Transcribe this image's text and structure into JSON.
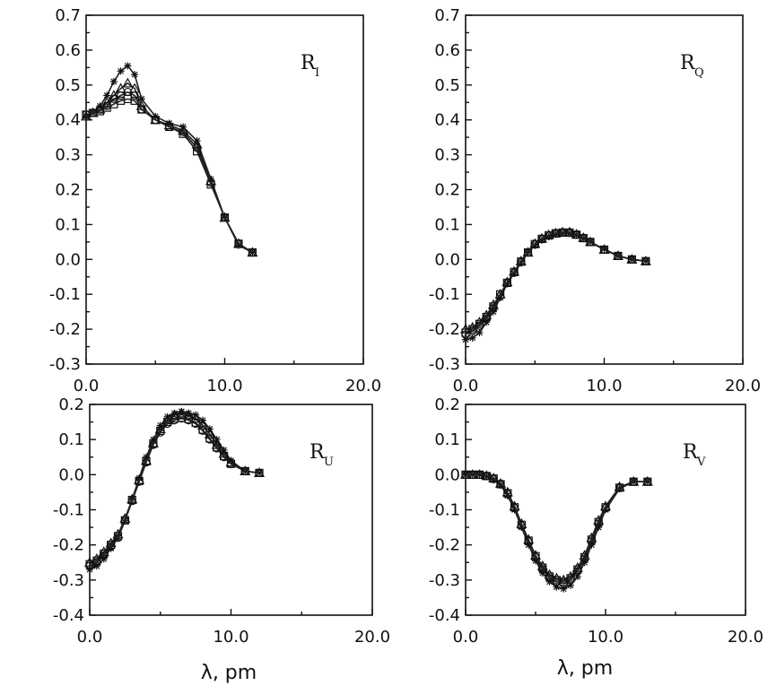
{
  "figure": {
    "xlabel_left": "λ, pm",
    "xlabel_right": "λ, pm"
  },
  "chart_data": [
    {
      "id": "RI",
      "type": "line",
      "title": "R",
      "title_sub": "I",
      "label_position": "top-right",
      "xlim": [
        0,
        20
      ],
      "ylim": [
        -0.3,
        0.7
      ],
      "xticks": [
        0,
        10,
        20
      ],
      "xtick_labels": [
        "0.0",
        "10.0",
        "20.0"
      ],
      "yticks": [
        -0.3,
        -0.2,
        -0.1,
        0.0,
        0.1,
        0.2,
        0.3,
        0.4,
        0.5,
        0.6,
        0.7
      ],
      "ytick_labels": [
        "-0.3",
        "-0.2",
        "-0.1",
        "0.0",
        "0.1",
        "0.2",
        "0.3",
        "0.4",
        "0.5",
        "0.6",
        "0.7"
      ],
      "x": [
        0,
        0.5,
        1,
        1.5,
        2,
        2.5,
        3,
        3.5,
        4,
        5,
        6,
        7,
        8,
        9,
        10,
        11,
        12
      ],
      "series": [
        {
          "name": "star",
          "marker": "star",
          "values": [
            0.41,
            0.42,
            0.44,
            0.47,
            0.51,
            0.54,
            0.555,
            0.53,
            0.46,
            0.41,
            0.39,
            0.38,
            0.34,
            0.23,
            0.12,
            0.04,
            0.02
          ]
        },
        {
          "name": "triangle",
          "marker": "triangle",
          "values": [
            0.41,
            0.42,
            0.43,
            0.45,
            0.47,
            0.49,
            0.505,
            0.49,
            0.44,
            0.4,
            0.385,
            0.37,
            0.33,
            0.225,
            0.12,
            0.045,
            0.02
          ]
        },
        {
          "name": "circle",
          "marker": "circle",
          "values": [
            0.415,
            0.42,
            0.43,
            0.44,
            0.46,
            0.47,
            0.48,
            0.47,
            0.43,
            0.4,
            0.38,
            0.365,
            0.32,
            0.22,
            0.12,
            0.045,
            0.02
          ]
        },
        {
          "name": "square",
          "marker": "square",
          "values": [
            0.415,
            0.42,
            0.425,
            0.435,
            0.445,
            0.455,
            0.46,
            0.455,
            0.43,
            0.4,
            0.38,
            0.36,
            0.31,
            0.215,
            0.12,
            0.045,
            0.02
          ]
        }
      ]
    },
    {
      "id": "RQ",
      "type": "line",
      "title": "R",
      "title_sub": "Q",
      "label_position": "top-right",
      "xlim": [
        0,
        20
      ],
      "ylim": [
        -0.3,
        0.7
      ],
      "xticks": [
        0,
        10,
        20
      ],
      "xtick_labels": [
        "0.0",
        "10.0",
        "20.0"
      ],
      "yticks": [
        -0.3,
        -0.2,
        -0.1,
        0.0,
        0.1,
        0.2,
        0.3,
        0.4,
        0.5,
        0.6,
        0.7
      ],
      "ytick_labels": [
        "-0.3",
        "-0.2",
        "-0.1",
        "0.0",
        "0.1",
        "0.2",
        "0.3",
        "0.4",
        "0.5",
        "0.6",
        "0.7"
      ],
      "x": [
        0,
        0.5,
        1,
        1.5,
        2,
        2.5,
        3,
        3.5,
        4,
        4.5,
        5,
        5.5,
        6,
        6.5,
        7,
        7.5,
        8,
        8.5,
        9,
        10,
        11,
        12,
        13
      ],
      "series": [
        {
          "name": "star",
          "marker": "star",
          "values": [
            -0.23,
            -0.225,
            -0.21,
            -0.18,
            -0.15,
            -0.11,
            -0.07,
            -0.04,
            -0.01,
            0.02,
            0.04,
            0.055,
            0.065,
            0.072,
            0.075,
            0.075,
            0.07,
            0.06,
            0.05,
            0.03,
            0.01,
            0.0,
            -0.005
          ]
        },
        {
          "name": "triangle",
          "marker": "triangle",
          "values": [
            -0.2,
            -0.195,
            -0.18,
            -0.16,
            -0.13,
            -0.1,
            -0.065,
            -0.035,
            -0.005,
            0.02,
            0.045,
            0.06,
            0.07,
            0.075,
            0.078,
            0.078,
            0.072,
            0.062,
            0.05,
            0.028,
            0.01,
            0.0,
            -0.005
          ]
        },
        {
          "name": "circle",
          "marker": "circle",
          "values": [
            -0.215,
            -0.205,
            -0.19,
            -0.17,
            -0.14,
            -0.105,
            -0.068,
            -0.038,
            -0.008,
            0.02,
            0.043,
            0.058,
            0.068,
            0.074,
            0.077,
            0.076,
            0.071,
            0.061,
            0.05,
            0.028,
            0.01,
            0.0,
            -0.005
          ]
        },
        {
          "name": "square",
          "marker": "square",
          "values": [
            -0.21,
            -0.2,
            -0.185,
            -0.165,
            -0.135,
            -0.1,
            -0.067,
            -0.036,
            -0.006,
            0.02,
            0.044,
            0.059,
            0.069,
            0.075,
            0.077,
            0.077,
            0.071,
            0.061,
            0.05,
            0.028,
            0.01,
            0.0,
            -0.005
          ]
        }
      ]
    },
    {
      "id": "RU",
      "type": "line",
      "title": "R",
      "title_sub": "U",
      "label_position": "top-right",
      "xlim": [
        0,
        20
      ],
      "ylim": [
        -0.4,
        0.2
      ],
      "xticks": [
        0,
        10,
        20
      ],
      "xtick_labels": [
        "0.0",
        "10.0",
        "20.0"
      ],
      "yticks": [
        -0.4,
        -0.3,
        -0.2,
        -0.1,
        0.0,
        0.1,
        0.2
      ],
      "ytick_labels": [
        "-0.4",
        "-0.3",
        "-0.2",
        "-0.1",
        "0.0",
        "0.1",
        "0.2"
      ],
      "x": [
        0,
        0.5,
        1,
        1.5,
        2,
        2.5,
        3,
        3.5,
        4,
        4.5,
        5,
        5.5,
        6,
        6.5,
        7,
        7.5,
        8,
        8.5,
        9,
        9.5,
        10,
        11,
        12
      ],
      "series": [
        {
          "name": "star",
          "marker": "star",
          "values": [
            -0.27,
            -0.26,
            -0.24,
            -0.21,
            -0.18,
            -0.13,
            -0.07,
            -0.01,
            0.05,
            0.1,
            0.14,
            0.165,
            0.175,
            0.18,
            0.175,
            0.17,
            0.155,
            0.13,
            0.1,
            0.07,
            0.04,
            0.01,
            0.005
          ]
        },
        {
          "name": "triangle",
          "marker": "triangle",
          "values": [
            -0.25,
            -0.24,
            -0.22,
            -0.195,
            -0.17,
            -0.125,
            -0.07,
            -0.015,
            0.04,
            0.09,
            0.13,
            0.155,
            0.17,
            0.175,
            0.17,
            0.16,
            0.14,
            0.115,
            0.085,
            0.06,
            0.035,
            0.01,
            0.005
          ]
        },
        {
          "name": "circle",
          "marker": "circle",
          "values": [
            -0.26,
            -0.25,
            -0.23,
            -0.205,
            -0.18,
            -0.13,
            -0.075,
            -0.02,
            0.035,
            0.085,
            0.12,
            0.145,
            0.155,
            0.16,
            0.155,
            0.145,
            0.125,
            0.1,
            0.075,
            0.05,
            0.03,
            0.01,
            0.005
          ]
        },
        {
          "name": "square",
          "marker": "square",
          "values": [
            -0.255,
            -0.245,
            -0.225,
            -0.2,
            -0.175,
            -0.13,
            -0.072,
            -0.018,
            0.038,
            0.088,
            0.125,
            0.15,
            0.16,
            0.162,
            0.158,
            0.148,
            0.128,
            0.103,
            0.078,
            0.053,
            0.031,
            0.01,
            0.005
          ]
        }
      ]
    },
    {
      "id": "RV",
      "type": "line",
      "title": "R",
      "title_sub": "V",
      "label_position": "top-right",
      "xlim": [
        0,
        20
      ],
      "ylim": [
        -0.4,
        0.2
      ],
      "xticks": [
        0,
        10,
        20
      ],
      "xtick_labels": [
        "0.0",
        "10.0",
        "20.0"
      ],
      "yticks": [
        -0.4,
        -0.3,
        -0.2,
        -0.1,
        0.0,
        0.1,
        0.2
      ],
      "ytick_labels": [
        "-0.4",
        "-0.3",
        "-0.2",
        "-0.1",
        "0.0",
        "0.1",
        "0.2"
      ],
      "x": [
        0,
        0.5,
        1,
        1.5,
        2,
        2.5,
        3,
        3.5,
        4,
        4.5,
        5,
        5.5,
        6,
        6.5,
        7,
        7.5,
        8,
        8.5,
        9,
        9.5,
        10,
        11,
        12,
        13
      ],
      "series": [
        {
          "name": "star",
          "marker": "star",
          "values": [
            0.0,
            0.0,
            0.0,
            -0.005,
            -0.015,
            -0.03,
            -0.06,
            -0.1,
            -0.15,
            -0.2,
            -0.245,
            -0.28,
            -0.305,
            -0.32,
            -0.325,
            -0.315,
            -0.29,
            -0.25,
            -0.2,
            -0.15,
            -0.1,
            -0.04,
            -0.02,
            -0.02
          ]
        },
        {
          "name": "triangle",
          "marker": "triangle",
          "values": [
            0.0,
            0.0,
            0.0,
            -0.003,
            -0.01,
            -0.025,
            -0.05,
            -0.09,
            -0.14,
            -0.185,
            -0.23,
            -0.26,
            -0.285,
            -0.295,
            -0.3,
            -0.29,
            -0.265,
            -0.23,
            -0.18,
            -0.13,
            -0.09,
            -0.035,
            -0.02,
            -0.02
          ]
        },
        {
          "name": "circle",
          "marker": "circle",
          "values": [
            0.0,
            0.0,
            0.0,
            -0.004,
            -0.012,
            -0.028,
            -0.055,
            -0.095,
            -0.145,
            -0.19,
            -0.235,
            -0.27,
            -0.295,
            -0.305,
            -0.31,
            -0.3,
            -0.275,
            -0.24,
            -0.19,
            -0.14,
            -0.095,
            -0.038,
            -0.02,
            -0.02
          ]
        },
        {
          "name": "square",
          "marker": "square",
          "values": [
            0.0,
            0.0,
            0.0,
            -0.004,
            -0.011,
            -0.027,
            -0.053,
            -0.093,
            -0.143,
            -0.188,
            -0.232,
            -0.265,
            -0.29,
            -0.3,
            -0.305,
            -0.295,
            -0.27,
            -0.235,
            -0.185,
            -0.135,
            -0.093,
            -0.037,
            -0.02,
            -0.02
          ]
        }
      ]
    }
  ]
}
